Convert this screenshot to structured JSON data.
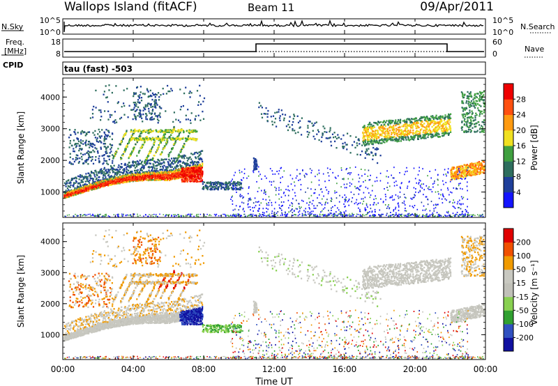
{
  "header": {
    "title": "Wallops Island (fitACF)",
    "beam": "Beam 11",
    "date": "09/Apr/2011"
  },
  "side_labels": {
    "nsky": "N.Sky",
    "nsearch": "N.Search",
    "freq": "Freq.",
    "mhz": "[MHz]",
    "cpid": "CPID",
    "nave": "Nave"
  },
  "cpid_text": "tau (fast) -503",
  "top_panel_ticks": {
    "nsky_left": [
      "10^5",
      "10^0"
    ],
    "nsky_right": [
      "10^5",
      "10^0"
    ],
    "freq_left": [
      "18",
      "8"
    ],
    "nave_right": [
      "60",
      "0"
    ]
  },
  "colors": {
    "power": [
      "#1414ff",
      "#1f3f9a",
      "#2e6e5e",
      "#40a040",
      "#f0e020",
      "#ff9a10",
      "#ff5010",
      "#ee0000"
    ],
    "velocity": [
      "#e00000",
      "#f05000",
      "#f09a00",
      "#c8c8c0",
      "#c0c0b8",
      "#88d050",
      "#30a030",
      "#3050c0",
      "#1010a0"
    ]
  },
  "chart_data": [
    {
      "type": "heatmap",
      "name": "Power",
      "ylabel": "Slant Range [km]",
      "yticks": [
        "1000",
        "2000",
        "3000",
        "4000"
      ],
      "ylim": [
        200,
        4600
      ],
      "xlim": [
        0,
        24
      ],
      "colorbar_label": "Power [dB]",
      "colorbar_ticks": [
        "4",
        "8",
        "12",
        "16",
        "20",
        "24",
        "28"
      ]
    },
    {
      "type": "heatmap",
      "name": "Velocity",
      "ylabel": "Slant Range [km]",
      "yticks": [
        "1000",
        "2000",
        "3000",
        "4000"
      ],
      "ylim": [
        200,
        4600
      ],
      "xlim": [
        0,
        24
      ],
      "colorbar_label": "Velocity [m s⁻¹]",
      "colorbar_ticks": [
        "200",
        "100",
        "50",
        "15",
        "-15",
        "-50",
        "-100",
        "-200"
      ]
    }
  ],
  "xaxis": {
    "label": "Time UT",
    "ticks": [
      "00:00",
      "04:00",
      "08:00",
      "12:00",
      "16:00",
      "20:00",
      "00:00"
    ]
  }
}
